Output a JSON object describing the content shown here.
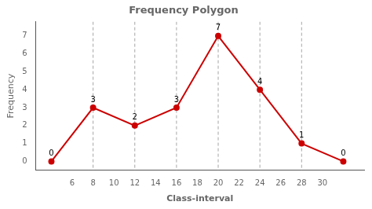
{
  "chart_data": {
    "type": "line",
    "title": "Frequency Polygon",
    "x": [
      4,
      8,
      12,
      16,
      20,
      24,
      28,
      32
    ],
    "values": [
      0,
      3,
      2,
      3,
      7,
      4,
      1,
      0
    ],
    "color": "#cc0000",
    "marker": "circle",
    "line_style": "solid",
    "data_labels": true,
    "vlines": [
      8,
      12,
      16,
      20,
      24,
      28
    ],
    "xlim": [
      2.5,
      34
    ],
    "xticks": [
      6,
      8,
      10,
      12,
      14,
      16,
      18,
      20,
      22,
      24,
      26,
      28,
      30
    ],
    "ylim": [
      -0.5,
      7.8
    ],
    "yticks": [
      0,
      1,
      2,
      3,
      4,
      5,
      6,
      7
    ],
    "xlabel": "Class-interval",
    "ylabel": "Frequency",
    "grid": false,
    "legend": "none"
  }
}
